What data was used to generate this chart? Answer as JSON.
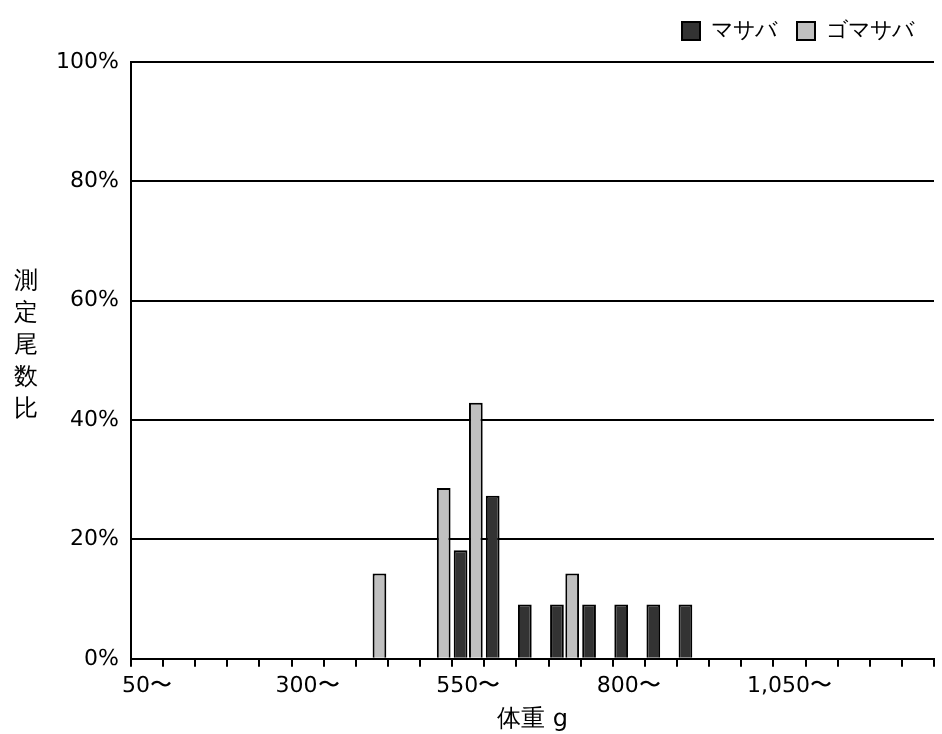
{
  "chart_data": {
    "type": "bar",
    "xlabel": "体重 g",
    "ylabel": "測定尾数比",
    "categories": [
      "50〜",
      null,
      null,
      null,
      null,
      "300〜",
      null,
      null,
      null,
      null,
      "550〜",
      null,
      null,
      null,
      null,
      "800〜",
      null,
      null,
      null,
      null,
      "1,050〜",
      null,
      null,
      null,
      null
    ],
    "series": [
      {
        "name": "マサバ",
        "color": "#333333",
        "values": [
          0,
          0,
          0,
          0,
          0,
          0,
          0,
          0,
          0,
          0,
          18.2,
          27.3,
          9.1,
          9.1,
          9.1,
          9.1,
          9.1,
          9.1,
          0,
          0,
          0,
          0,
          0,
          0,
          0
        ]
      },
      {
        "name": "ゴマサバ",
        "color": "#c0c0c0",
        "values": [
          0,
          0,
          0,
          0,
          0,
          0,
          0,
          14.3,
          0,
          28.6,
          42.9,
          0,
          0,
          14.3,
          0,
          0,
          0,
          0,
          0,
          0,
          0,
          0,
          0,
          0,
          0
        ]
      }
    ],
    "ylim": [
      0,
      100
    ],
    "yticks": [
      {
        "value": 0,
        "label": "0%"
      },
      {
        "value": 20,
        "label": "20%"
      },
      {
        "value": 40,
        "label": "40%"
      },
      {
        "value": 60,
        "label": "60%"
      },
      {
        "value": 80,
        "label": "80%"
      },
      {
        "value": 100,
        "label": "100%"
      }
    ],
    "grid": "y",
    "legend": "top right"
  }
}
